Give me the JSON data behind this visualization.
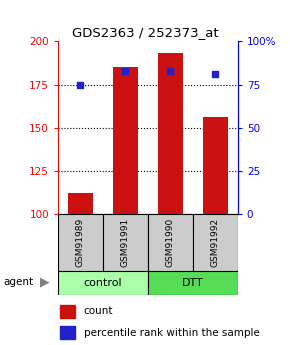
{
  "title": "GDS2363 / 252373_at",
  "samples": [
    "GSM91989",
    "GSM91991",
    "GSM91990",
    "GSM91992"
  ],
  "counts": [
    112,
    185,
    193,
    156
  ],
  "percentiles": [
    75,
    83,
    83,
    81
  ],
  "groups": [
    {
      "label": "control",
      "samples": [
        0,
        1
      ],
      "color": "#aaffaa"
    },
    {
      "label": "DTT",
      "samples": [
        2,
        3
      ],
      "color": "#55dd55"
    }
  ],
  "ylim_left": [
    100,
    200
  ],
  "ylim_right": [
    0,
    100
  ],
  "yticks_left": [
    100,
    125,
    150,
    175,
    200
  ],
  "yticks_right": [
    0,
    25,
    50,
    75,
    100
  ],
  "ytick_labels_right": [
    "0",
    "25",
    "50",
    "75",
    "100%"
  ],
  "bar_color": "#cc1111",
  "dot_color": "#2222cc",
  "bar_width": 0.55,
  "agent_label": "agent",
  "legend_count": "count",
  "legend_pct": "percentile rank within the sample"
}
